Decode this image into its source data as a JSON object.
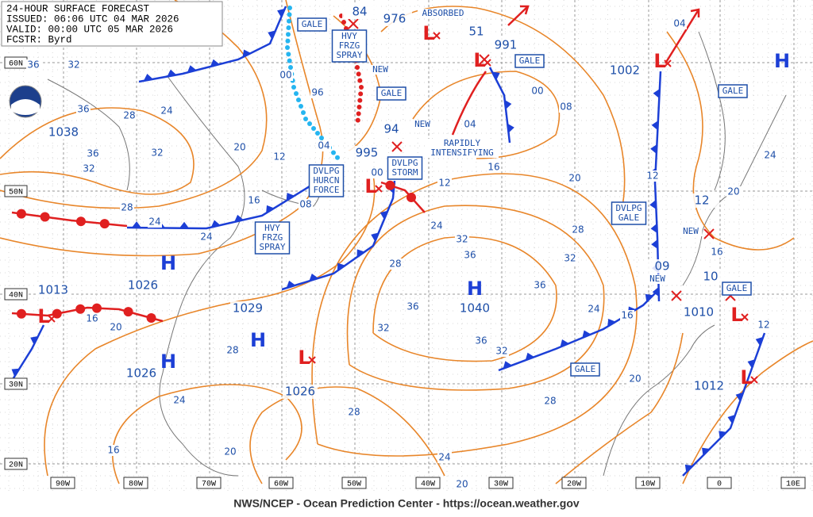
{
  "header": {
    "lines": [
      "24-HOUR SURFACE FORECAST",
      "ISSUED: 06:06 UTC 04 MAR 2026",
      "VALID:  00:00 UTC 05 MAR 2026",
      "FCSTR:  Byrd"
    ]
  },
  "grid": {
    "longitudes": [
      "90W",
      "80W",
      "70W",
      "60W",
      "50W",
      "40W",
      "30W",
      "20W",
      "10W",
      "0",
      "10E"
    ],
    "latitudes": [
      "60N",
      "50N",
      "40N",
      "30N",
      "20N"
    ]
  },
  "centers": [
    "H",
    "H",
    "H",
    "H",
    "H",
    "L",
    "L",
    "L",
    "L",
    "L",
    "L",
    "L",
    "L"
  ],
  "central_pressures": [
    "1038",
    "1013",
    "1026",
    "1029",
    "1026",
    "1026",
    "1040",
    "995",
    "94",
    "976",
    "84",
    "51",
    "991",
    "1002",
    "09",
    "10",
    "1010",
    "1012",
    "12"
  ],
  "isobar_labels": [
    "36",
    "32",
    "36",
    "28",
    "24",
    "36",
    "32",
    "32",
    "28",
    "24",
    "24",
    "20",
    "12",
    "16",
    "08",
    "04",
    "00",
    "96",
    "00",
    "12",
    "04",
    "00",
    "08",
    "16",
    "20",
    "24",
    "28",
    "32",
    "36",
    "36",
    "32",
    "28",
    "36",
    "36",
    "32",
    "32",
    "28",
    "24",
    "20",
    "16",
    "16",
    "20",
    "28",
    "24",
    "20",
    "28",
    "20",
    "24",
    "16",
    "12",
    "16",
    "20",
    "24",
    "12",
    "04"
  ],
  "boxed_notes": [
    {
      "lines": [
        "GALE"
      ]
    },
    {
      "lines": [
        "GALE"
      ]
    },
    {
      "lines": [
        "GALE"
      ]
    },
    {
      "lines": [
        "GALE"
      ]
    },
    {
      "lines": [
        "GALE"
      ]
    },
    {
      "lines": [
        "GALE"
      ]
    },
    {
      "lines": [
        "HVY",
        "FRZG",
        "SPRAY"
      ]
    },
    {
      "lines": [
        "HVY",
        "FRZG",
        "SPRAY"
      ]
    },
    {
      "lines": [
        "DVLPG",
        "HURCN",
        "FORCE"
      ]
    },
    {
      "lines": [
        "DVLPG",
        "STORM"
      ]
    },
    {
      "lines": [
        "DVLPG",
        "GALE"
      ]
    }
  ],
  "notes": [
    {
      "lines": [
        "ABSORBED"
      ]
    },
    {
      "lines": [
        "RAPIDLY",
        "INTENSIFYING"
      ]
    },
    {
      "lines": [
        "NEW"
      ]
    },
    {
      "lines": [
        "NEW"
      ]
    },
    {
      "lines": [
        "NEW"
      ]
    },
    {
      "lines": [
        "NEW"
      ]
    }
  ],
  "footer": "NWS/NCEP - Ocean Prediction Center - https://ocean.weather.gov"
}
